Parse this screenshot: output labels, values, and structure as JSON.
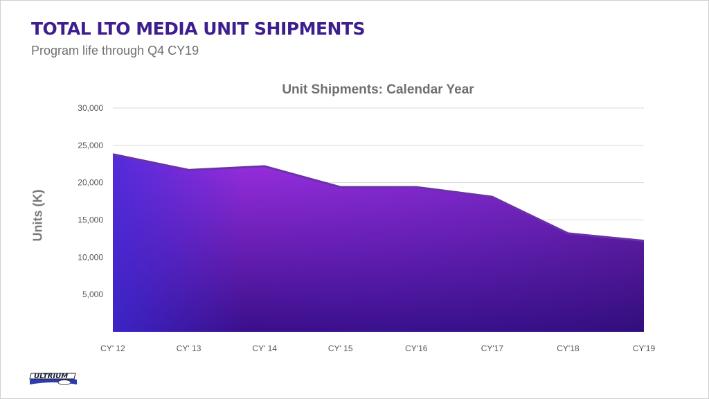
{
  "slide": {
    "title": "TOTAL LTO MEDIA UNIT SHIPMENTS",
    "subtitle": "Program life through Q4 CY19",
    "logo_text": "ULTRIUM"
  },
  "chart_data": {
    "type": "area",
    "title": "Unit Shipments: Calendar Year",
    "xlabel": "",
    "ylabel": "Units (K)",
    "categories": [
      "CY' 12",
      "CY' 13",
      "CY' 14",
      "CY' 15",
      "CY'16",
      "CY'17",
      "CY'18",
      "CY'19"
    ],
    "series": [
      {
        "values": [
          23800,
          21700,
          22200,
          19400,
          19400,
          18100,
          13200,
          12200
        ]
      }
    ],
    "ylim": [
      0,
      30000
    ],
    "yticks": [
      5000,
      10000,
      15000,
      20000,
      25000,
      30000
    ],
    "ytick_labels": [
      "5,000",
      "10,000",
      "15,000",
      "20,000",
      "25,000",
      "30,000"
    ],
    "grid": true,
    "colors": {
      "top": "#9b2fe0",
      "left": "#3c2ad8",
      "bottom": "#3a0f8a",
      "edge": "#6a32a8"
    }
  }
}
